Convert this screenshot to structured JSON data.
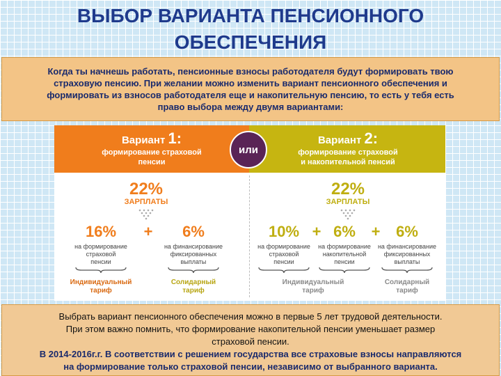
{
  "header": {
    "title_lines": [
      "ВЫБОР ВАРИАНТА ПЕНСИОННОГО",
      "ОБЕСПЕЧЕНИЯ"
    ]
  },
  "intro": {
    "lines": [
      "Когда ты начнешь работать, пенсионные взносы работодателя будут формировать твою",
      "страховую пенсию. При желании можно изменить вариант пенсионного обеспечения и",
      "формировать из взносов работодателя еще и накопительную пенсию, то есть у тебя есть",
      "право выбора между двумя вариантами:"
    ]
  },
  "separator": "или",
  "variants": [
    {
      "label": "Вариант",
      "number": "1:",
      "subtitle_lines": [
        "формирование страховой",
        "пенсии"
      ],
      "total": "22%",
      "total_label": "ЗАРПЛАТЫ",
      "parts": [
        {
          "value": "16%",
          "description_lines": [
            "на формирование",
            "страховой",
            "пенсии"
          ]
        },
        {
          "value": "6%",
          "description_lines": [
            "на финансирование",
            "фиксированных",
            "выплаты"
          ]
        }
      ],
      "operators": [
        "+"
      ],
      "tariffs": [
        {
          "lines": [
            "Индивидуальный",
            "тариф"
          ]
        },
        {
          "lines": [
            "Солидарный",
            "тариф"
          ]
        }
      ]
    },
    {
      "label": "Вариант",
      "number": "2:",
      "subtitle_lines": [
        "формирование страховой",
        "и накопительной пенсий"
      ],
      "total": "22%",
      "total_label": "ЗАРПЛАТЫ",
      "parts": [
        {
          "value": "10%",
          "description_lines": [
            "на формирование",
            "страховой",
            "пенсии"
          ]
        },
        {
          "value": "6%",
          "description_lines": [
            "на формирование",
            "накопительной",
            "пенсии"
          ]
        },
        {
          "value": "6%",
          "description_lines": [
            "на финансирование",
            "фиксированных",
            "выплаты"
          ]
        }
      ],
      "operators": [
        "+",
        "+"
      ],
      "tariffs": [
        {
          "lines": [
            "Индивидуальный",
            "тариф"
          ]
        },
        {
          "lines": [
            "Солидарный",
            "тариф"
          ]
        }
      ]
    }
  ],
  "footer": {
    "lines": [
      "Выбрать вариант пенсионного обеспечения можно в первые 5 лет трудовой деятельности.",
      "При этом важно помнить, что формирование накопительной пенсии уменьшает размер",
      "страховой пенсии.",
      "В 2014-2016г.г. В соответствии с решением государства все страховые взносы направляются",
      "на формирование только страховой пенсии, независимо от выбранного варианта."
    ]
  }
}
